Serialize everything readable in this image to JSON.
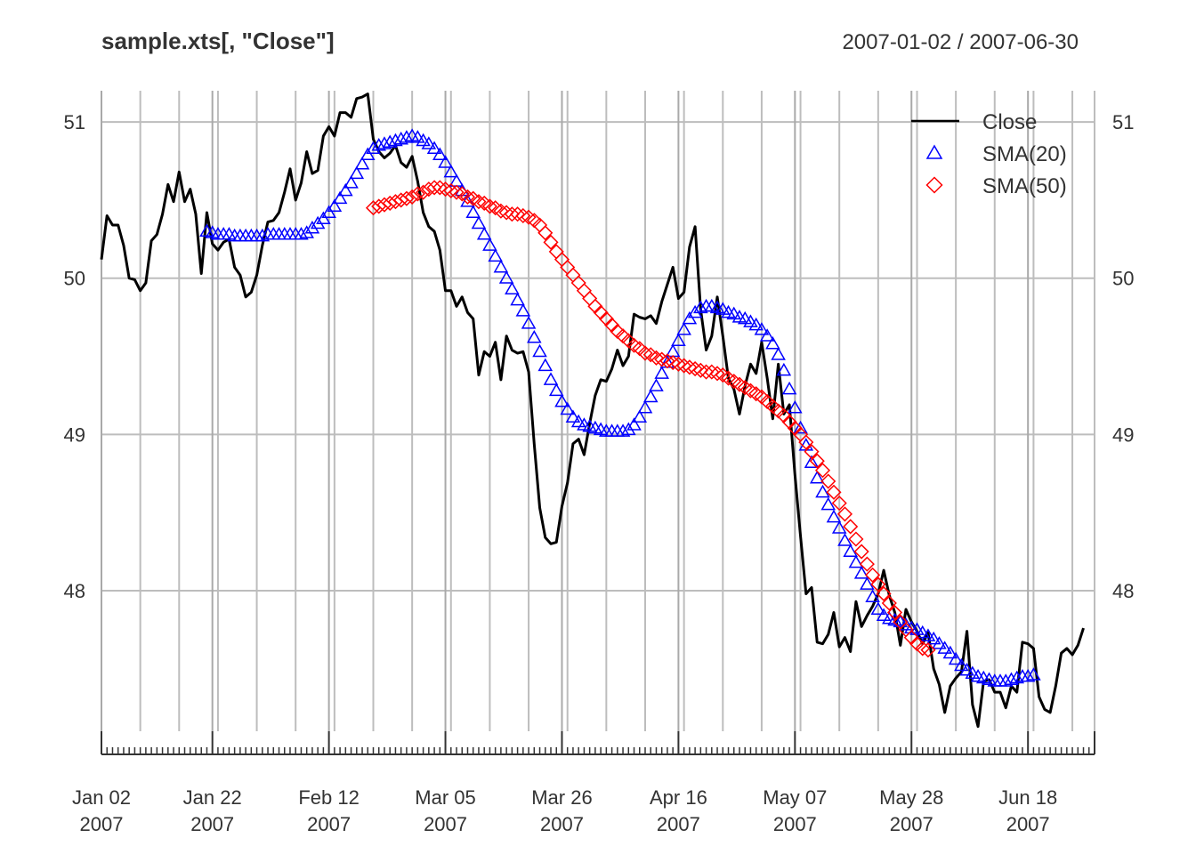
{
  "chart_data": {
    "type": "line",
    "title": "sample.xts[, \"Close\"]",
    "date_range": "2007-01-02 / 2007-06-30",
    "ylim": [
      47.1,
      51.2
    ],
    "y_ticks": [
      {
        "value": 48,
        "label": "48"
      },
      {
        "value": 49,
        "label": "49"
      },
      {
        "value": 50,
        "label": "50"
      },
      {
        "value": 51,
        "label": "51"
      }
    ],
    "x_day_range": [
      0,
      179
    ],
    "x_ticks": [
      {
        "day": 0,
        "label": "Jan 02",
        "year": "2007"
      },
      {
        "day": 20,
        "label": "Jan 22",
        "year": "2007"
      },
      {
        "day": 41,
        "label": "Feb 12",
        "year": "2007"
      },
      {
        "day": 62,
        "label": "Mar 05",
        "year": "2007"
      },
      {
        "day": 83,
        "label": "Mar 26",
        "year": "2007"
      },
      {
        "day": 104,
        "label": "Apr 16",
        "year": "2007"
      },
      {
        "day": 125,
        "label": "May 07",
        "year": "2007"
      },
      {
        "day": 146,
        "label": "May 28",
        "year": "2007"
      },
      {
        "day": 167,
        "label": "Jun 18",
        "year": "2007"
      }
    ],
    "legend": [
      {
        "name": "Close",
        "style": "line",
        "color": "#000000"
      },
      {
        "name": "SMA(20)",
        "style": "triangle",
        "color": "#0000ff"
      },
      {
        "name": "SMA(50)",
        "style": "diamond",
        "color": "#ff0000"
      }
    ],
    "series": [
      {
        "name": "Close",
        "color": "#000000",
        "values": [
          50.12,
          50.4,
          50.34,
          50.34,
          50.21,
          50.0,
          49.99,
          49.92,
          49.97,
          50.24,
          50.28,
          50.41,
          50.6,
          50.49,
          50.68,
          50.49,
          50.57,
          50.41,
          50.03,
          50.42,
          50.22,
          50.18,
          50.23,
          50.25,
          50.07,
          50.02,
          49.88,
          49.91,
          50.02,
          50.21,
          50.36,
          50.37,
          50.42,
          50.55,
          50.7,
          50.5,
          50.61,
          50.81,
          50.67,
          50.69,
          50.91,
          50.97,
          50.91,
          51.06,
          51.06,
          51.03,
          51.15,
          51.16,
          51.18,
          50.89,
          50.81,
          50.77,
          50.8,
          50.85,
          50.74,
          50.71,
          50.78,
          50.62,
          50.42,
          50.33,
          50.3,
          50.18,
          49.92,
          49.92,
          49.82,
          49.88,
          49.78,
          49.74,
          49.38,
          49.53,
          49.5,
          49.59,
          49.35,
          49.63,
          49.54,
          49.52,
          49.53,
          49.4,
          48.94,
          48.53,
          48.34,
          48.3,
          48.31,
          48.54,
          48.69,
          48.94,
          48.97,
          48.87,
          49.07,
          49.25,
          49.35,
          49.34,
          49.42,
          49.54,
          49.44,
          49.5,
          49.77,
          49.75,
          49.74,
          49.76,
          49.71,
          49.85,
          49.96,
          50.07,
          49.87,
          49.91,
          50.2,
          50.33,
          49.8,
          49.54,
          49.63,
          49.88,
          49.63,
          49.36,
          49.29,
          49.13,
          49.31,
          49.45,
          49.39,
          49.59,
          49.36,
          49.1,
          49.45,
          49.13,
          49.19,
          48.74,
          48.35,
          47.98,
          48.02,
          47.67,
          47.66,
          47.72,
          47.86,
          47.64,
          47.7,
          47.61,
          47.93,
          47.77,
          47.84,
          47.9,
          47.98,
          48.13,
          47.97,
          47.86,
          47.65,
          47.88,
          47.8,
          47.74,
          47.66,
          47.73,
          47.5,
          47.4,
          47.22,
          47.39,
          47.44,
          47.48,
          47.74,
          47.27,
          47.13,
          47.42,
          47.43,
          47.35,
          47.35,
          47.25,
          47.39,
          47.35,
          47.67,
          47.66,
          47.63,
          47.32,
          47.24,
          47.22,
          47.39,
          47.6,
          47.63,
          47.59,
          47.65,
          47.76
        ]
      },
      {
        "name": "SMA(20)",
        "color": "#0000ff",
        "marker": "triangle",
        "values": [
          null,
          null,
          null,
          null,
          null,
          null,
          null,
          null,
          null,
          null,
          null,
          null,
          null,
          null,
          null,
          null,
          null,
          null,
          null,
          50.3,
          50.29,
          50.28,
          50.28,
          50.28,
          50.27,
          50.27,
          50.27,
          50.27,
          50.27,
          50.27,
          50.28,
          50.28,
          50.28,
          50.28,
          50.28,
          50.28,
          50.28,
          50.29,
          50.32,
          50.35,
          50.38,
          50.42,
          50.46,
          50.51,
          50.56,
          50.61,
          50.67,
          50.73,
          50.79,
          50.83,
          50.85,
          50.86,
          50.87,
          50.88,
          50.89,
          50.9,
          50.91,
          50.9,
          50.88,
          50.86,
          50.83,
          50.79,
          50.74,
          50.68,
          50.62,
          50.56,
          50.49,
          50.42,
          50.35,
          50.28,
          50.21,
          50.14,
          50.07,
          50.0,
          49.93,
          49.86,
          49.79,
          49.71,
          49.62,
          49.53,
          49.44,
          49.35,
          49.28,
          49.21,
          49.16,
          49.11,
          49.08,
          49.06,
          49.05,
          49.04,
          49.03,
          49.02,
          49.02,
          49.02,
          49.02,
          49.03,
          49.06,
          49.11,
          49.17,
          49.24,
          49.31,
          49.39,
          49.46,
          49.53,
          49.6,
          49.67,
          49.74,
          49.78,
          49.81,
          49.82,
          49.82,
          49.81,
          49.8,
          49.78,
          49.77,
          49.75,
          49.74,
          49.72,
          49.7,
          49.67,
          49.63,
          49.58,
          49.51,
          49.41,
          49.29,
          49.17,
          49.04,
          48.93,
          48.82,
          48.72,
          48.63,
          48.55,
          48.47,
          48.4,
          48.32,
          48.25,
          48.18,
          48.11,
          48.04,
          47.96,
          47.88,
          47.84,
          47.82,
          47.81,
          47.8,
          47.78,
          47.76,
          47.75,
          47.73,
          47.71,
          47.69,
          47.66,
          47.63,
          47.6,
          47.56,
          47.52,
          47.49,
          47.47,
          47.45,
          47.44,
          47.43,
          47.42,
          47.42,
          47.42,
          47.43,
          47.44,
          47.45,
          47.45,
          47.46
        ]
      },
      {
        "name": "SMA(50)",
        "color": "#ff0000",
        "marker": "diamond",
        "values": [
          null,
          null,
          null,
          null,
          null,
          null,
          null,
          null,
          null,
          null,
          null,
          null,
          null,
          null,
          null,
          null,
          null,
          null,
          null,
          null,
          null,
          null,
          null,
          null,
          null,
          null,
          null,
          null,
          null,
          null,
          null,
          null,
          null,
          null,
          null,
          null,
          null,
          null,
          null,
          null,
          null,
          null,
          null,
          null,
          null,
          null,
          null,
          null,
          null,
          50.45,
          50.46,
          50.47,
          50.48,
          50.49,
          50.5,
          50.51,
          50.52,
          50.54,
          50.55,
          50.57,
          50.58,
          50.58,
          50.57,
          50.56,
          50.55,
          50.54,
          50.52,
          50.51,
          50.49,
          50.48,
          50.46,
          50.45,
          50.43,
          50.42,
          50.41,
          50.41,
          50.4,
          50.39,
          50.37,
          50.34,
          50.29,
          50.23,
          50.17,
          50.12,
          50.07,
          50.02,
          49.97,
          49.92,
          49.87,
          49.82,
          49.78,
          49.74,
          49.7,
          49.66,
          49.63,
          49.6,
          49.57,
          49.55,
          49.52,
          49.51,
          49.49,
          49.48,
          49.47,
          49.46,
          49.45,
          49.44,
          49.43,
          49.42,
          49.41,
          49.4,
          49.4,
          49.39,
          49.38,
          49.36,
          49.34,
          49.32,
          49.3,
          49.28,
          49.26,
          49.24,
          49.21,
          49.18,
          49.15,
          49.12,
          49.08,
          49.04,
          49.0,
          48.95,
          48.89,
          48.83,
          48.77,
          48.7,
          48.63,
          48.56,
          48.49,
          48.41,
          48.33,
          48.25,
          48.17,
          48.1,
          48.04,
          47.98,
          47.92,
          47.86,
          47.8,
          47.75,
          47.7,
          47.66,
          47.63,
          47.62
        ]
      }
    ]
  }
}
